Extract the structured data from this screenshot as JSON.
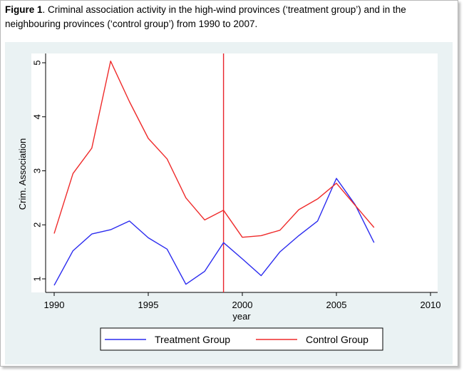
{
  "caption": {
    "label": "Figure 1",
    "text": ". Criminal association activity in the high-wind provinces (‘treatment group’) and in the neighbouring provinces (‘control group’) from 1990 to 2007."
  },
  "chart_data": {
    "type": "line",
    "title": "",
    "xlabel": "year",
    "ylabel": "Crim. Association",
    "xlim": [
      1990,
      2010
    ],
    "ylim": [
      0.75,
      5.1
    ],
    "xticks": [
      1990,
      1995,
      2000,
      2005,
      2010
    ],
    "yticks": [
      1,
      2,
      3,
      4,
      5
    ],
    "grid": false,
    "legend_position": "bottom",
    "vertical_line": {
      "x": 1999,
      "color": "#e8242b"
    },
    "x": [
      1990,
      1991,
      1992,
      1993,
      1994,
      1995,
      1996,
      1997,
      1998,
      1999,
      2000,
      2001,
      2002,
      2003,
      2004,
      2005,
      2006,
      2007
    ],
    "series": [
      {
        "name": "Treatment Group",
        "color": "#2b2bef",
        "values": [
          0.88,
          1.52,
          1.83,
          1.91,
          2.07,
          1.76,
          1.55,
          0.9,
          1.14,
          1.67,
          1.37,
          1.06,
          1.5,
          1.8,
          2.07,
          2.86,
          2.37,
          1.67
        ]
      },
      {
        "name": "Control Group",
        "color": "#ef2b2b",
        "values": [
          1.84,
          2.95,
          3.42,
          5.03,
          4.28,
          3.6,
          3.22,
          2.5,
          2.09,
          2.27,
          1.77,
          1.8,
          1.9,
          2.28,
          2.48,
          2.77,
          2.36,
          1.95
        ]
      }
    ]
  }
}
